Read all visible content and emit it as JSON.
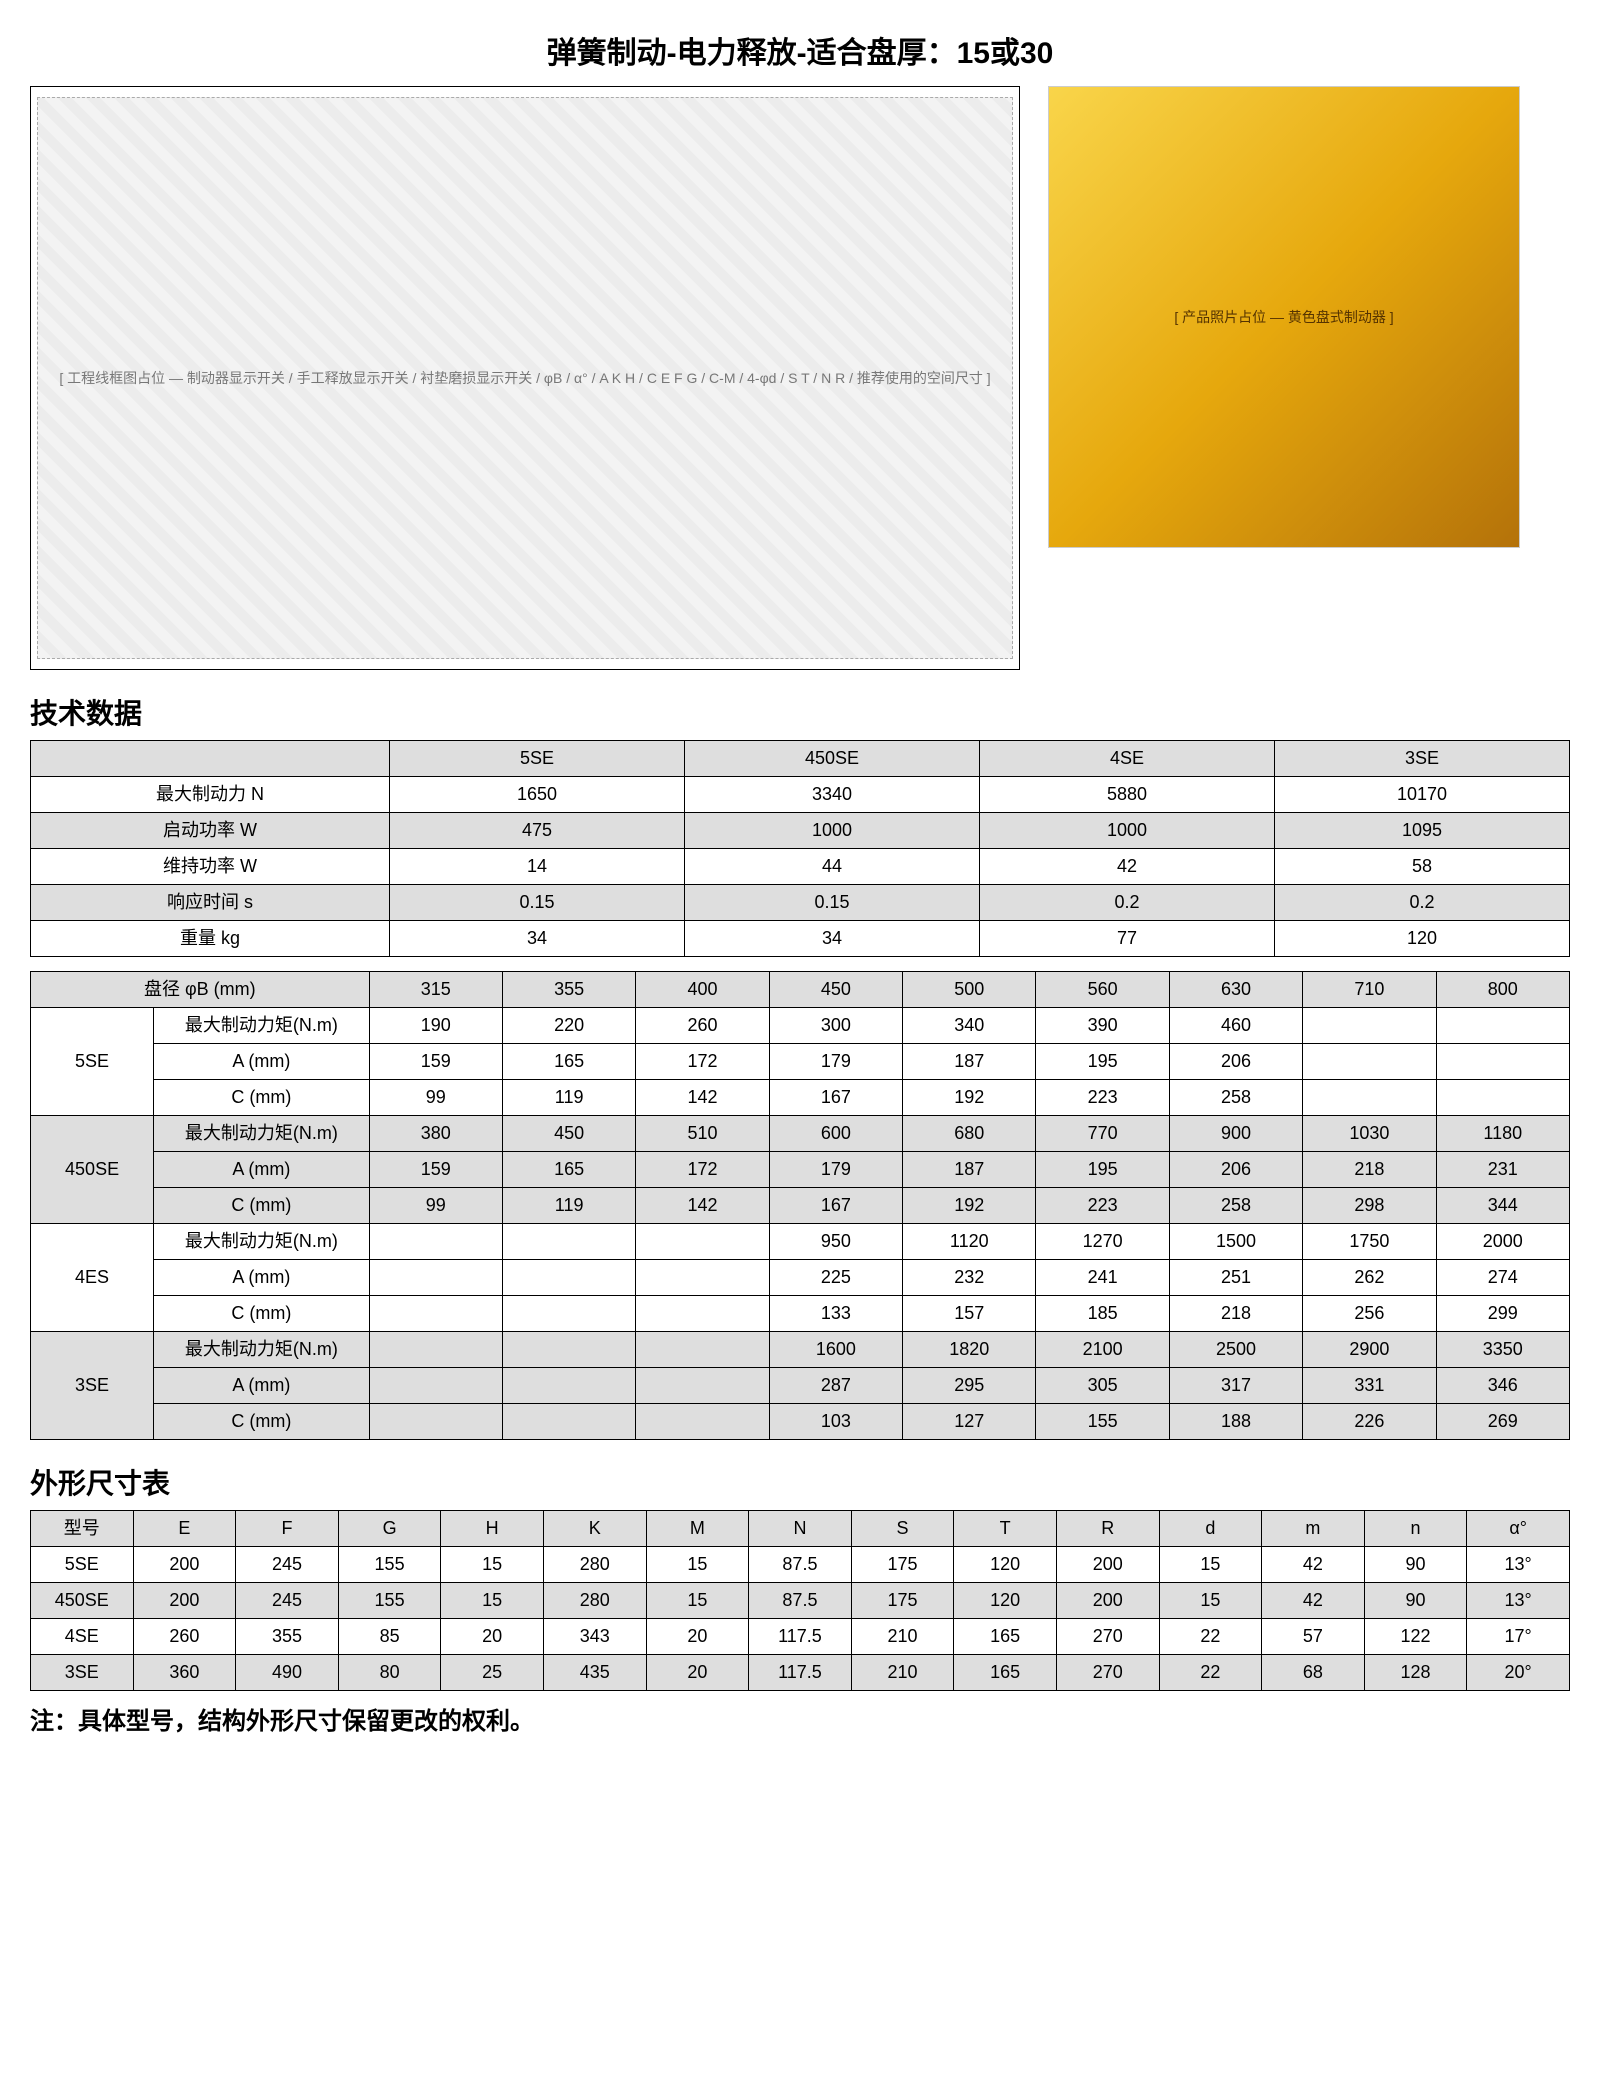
{
  "title": "弹簧制动-电力释放-适合盘厚：15或30",
  "diagram_caption": "[ 工程线框图占位 — 制动器显示开关 / 手工释放显示开关 / 衬垫磨损显示开关 / φB / α° / A K H / C E F G / C-M / 4-φd / S T / N R / 推荐使用的空间尺寸 ]",
  "photo_caption": "[ 产品照片占位 — 黄色盘式制动器 ]",
  "section1": "技术数据",
  "section2": "外形尺寸表",
  "footnote": "注：具体型号，结构外形尺寸保留更改的权利。",
  "tech": {
    "cols": [
      "5SE",
      "450SE",
      "4SE",
      "3SE"
    ],
    "rows": [
      {
        "label": "最大制动力  N",
        "vals": [
          "1650",
          "3340",
          "5880",
          "10170"
        ]
      },
      {
        "label": "启动功率  W",
        "vals": [
          "475",
          "1000",
          "1000",
          "1095"
        ]
      },
      {
        "label": "维持功率  W",
        "vals": [
          "14",
          "44",
          "42",
          "58"
        ]
      },
      {
        "label": "响应时间  s",
        "vals": [
          "0.15",
          "0.15",
          "0.2",
          "0.2"
        ]
      },
      {
        "label": "重量  kg",
        "vals": [
          "34",
          "34",
          "77",
          "120"
        ]
      }
    ]
  },
  "disc": {
    "header_label": "盘径 φB (mm)",
    "dia": [
      "315",
      "355",
      "400",
      "450",
      "500",
      "560",
      "630",
      "710",
      "800"
    ],
    "param_labels": [
      "最大制动力矩(N.m)",
      "A (mm)",
      "C (mm)"
    ],
    "groups": [
      {
        "model": "5SE",
        "rows": [
          [
            "190",
            "220",
            "260",
            "300",
            "340",
            "390",
            "460",
            "",
            ""
          ],
          [
            "159",
            "165",
            "172",
            "179",
            "187",
            "195",
            "206",
            "",
            ""
          ],
          [
            "99",
            "119",
            "142",
            "167",
            "192",
            "223",
            "258",
            "",
            ""
          ]
        ]
      },
      {
        "model": "450SE",
        "rows": [
          [
            "380",
            "450",
            "510",
            "600",
            "680",
            "770",
            "900",
            "1030",
            "1180"
          ],
          [
            "159",
            "165",
            "172",
            "179",
            "187",
            "195",
            "206",
            "218",
            "231"
          ],
          [
            "99",
            "119",
            "142",
            "167",
            "192",
            "223",
            "258",
            "298",
            "344"
          ]
        ]
      },
      {
        "model": "4ES",
        "rows": [
          [
            "",
            "",
            "",
            "950",
            "1120",
            "1270",
            "1500",
            "1750",
            "2000"
          ],
          [
            "",
            "",
            "",
            "225",
            "232",
            "241",
            "251",
            "262",
            "274"
          ],
          [
            "",
            "",
            "",
            "133",
            "157",
            "185",
            "218",
            "256",
            "299"
          ]
        ]
      },
      {
        "model": "3SE",
        "rows": [
          [
            "",
            "",
            "",
            "1600",
            "1820",
            "2100",
            "2500",
            "2900",
            "3350"
          ],
          [
            "",
            "",
            "",
            "287",
            "295",
            "305",
            "317",
            "331",
            "346"
          ],
          [
            "",
            "",
            "",
            "103",
            "127",
            "155",
            "188",
            "226",
            "269"
          ]
        ]
      }
    ]
  },
  "dims": {
    "head": [
      "型号",
      "E",
      "F",
      "G",
      "H",
      "K",
      "M",
      "N",
      "S",
      "T",
      "R",
      "d",
      "m",
      "n",
      "α°"
    ],
    "rows": [
      [
        "5SE",
        "200",
        "245",
        "155",
        "15",
        "280",
        "15",
        "87.5",
        "175",
        "120",
        "200",
        "15",
        "42",
        "90",
        "13°"
      ],
      [
        "450SE",
        "200",
        "245",
        "155",
        "15",
        "280",
        "15",
        "87.5",
        "175",
        "120",
        "200",
        "15",
        "42",
        "90",
        "13°"
      ],
      [
        "4SE",
        "260",
        "355",
        "85",
        "20",
        "343",
        "20",
        "117.5",
        "210",
        "165",
        "270",
        "22",
        "57",
        "122",
        "17°"
      ],
      [
        "3SE",
        "360",
        "490",
        "80",
        "25",
        "435",
        "20",
        "117.5",
        "210",
        "165",
        "270",
        "22",
        "68",
        "128",
        "20°"
      ]
    ]
  }
}
